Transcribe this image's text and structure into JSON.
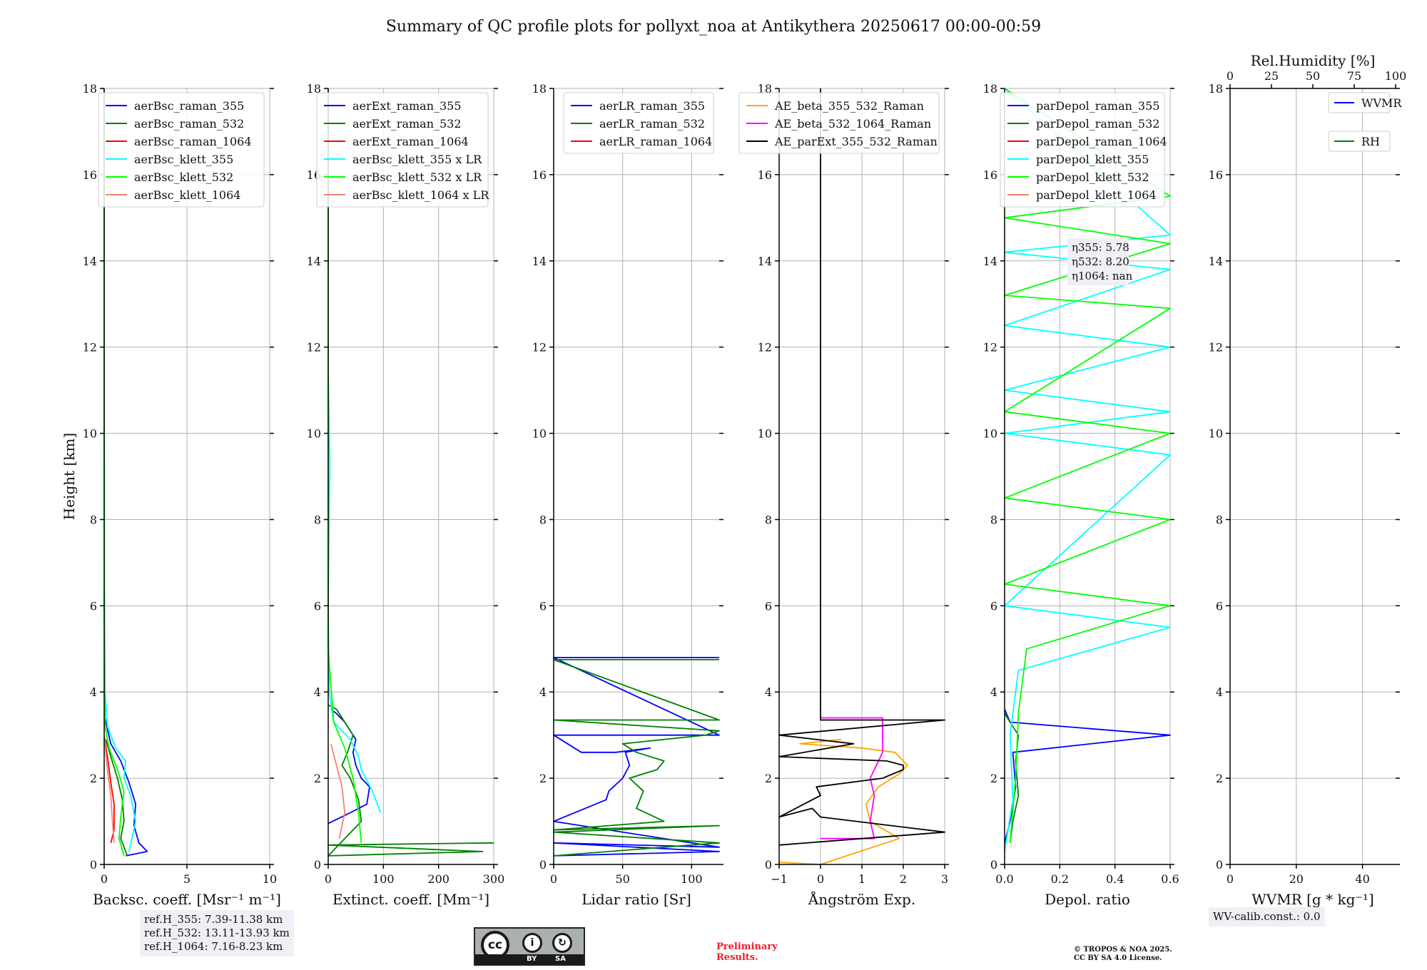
{
  "title": "Summary of QC profile plots for pollyxt_noa at Antikythera 20250617 00:00-00:59",
  "ref_heights": [
    "ref.H_355: 7.39-11.38 km",
    "ref.H_532: 13.11-13.93 km",
    "ref.H_1064: 7.16-8.23 km"
  ],
  "wv_calib": "WV-calib.const.: 0.0",
  "preliminary": [
    "Preliminary",
    "Results."
  ],
  "copyright": [
    "© TROPOS & NOA 2025.",
    "CC BY SA 4.0 License."
  ],
  "license_badge": {
    "cc": "cc",
    "by": "BY",
    "sa": "SA"
  },
  "colors": {
    "blue": "#0000ff",
    "green": "#008000",
    "red": "#ff0000",
    "cyan": "#00ffff",
    "lime": "#00ff00",
    "salmon": "#fa8072",
    "orange": "#ffa500",
    "magenta": "#ff00ff",
    "black": "#000000",
    "grid": "#b0b0b0"
  },
  "chart_data": [
    {
      "type": "line",
      "ylabel": "Height [km]",
      "xlabel": "Backsc. coeff. [Msr⁻¹ m⁻¹]",
      "xlim": [
        0,
        10
      ],
      "ylim": [
        0,
        18
      ],
      "xticks": [
        0,
        5,
        10
      ],
      "yticks": [
        0,
        2,
        4,
        6,
        8,
        10,
        12,
        14,
        16,
        18
      ],
      "grid": true,
      "legend_position": "top-right",
      "series": [
        {
          "name": "aerBsc_raman_355",
          "color": "blue",
          "x": [
            1.3,
            2.6,
            2.1,
            1.8,
            1.9,
            1.5,
            1.0,
            0.4,
            0.1,
            0.0
          ],
          "y": [
            0.2,
            0.3,
            0.5,
            0.9,
            1.4,
            1.9,
            2.4,
            2.8,
            3.3,
            3.5
          ]
        },
        {
          "name": "aerBsc_raman_532",
          "color": "green",
          "x": [
            1.4,
            1.0,
            1.2,
            1.1,
            0.8,
            0.4,
            0.1
          ],
          "y": [
            0.2,
            0.6,
            1.0,
            1.5,
            2.0,
            2.5,
            2.9
          ]
        },
        {
          "name": "aerBsc_raman_1064",
          "color": "red",
          "x": [
            0.4,
            0.6,
            0.6,
            0.4,
            0.2,
            0.0
          ],
          "y": [
            0.5,
            0.8,
            1.4,
            1.9,
            2.5,
            3.0
          ]
        },
        {
          "name": "aerBsc_klett_355",
          "color": "cyan",
          "x": [
            1.5,
            1.9,
            1.6,
            1.2,
            1.3,
            0.7,
            0.2,
            0.05,
            0.0,
            0.02,
            0.0,
            0.0
          ],
          "y": [
            0.3,
            1.0,
            1.6,
            2.0,
            2.4,
            2.7,
            3.2,
            4.0,
            6.0,
            8.0,
            11.5,
            18.0
          ]
        },
        {
          "name": "aerBsc_klett_532",
          "color": "lime",
          "x": [
            1.2,
            0.9,
            1.0,
            1.2,
            0.8,
            0.3,
            0.05,
            0.0,
            0.0
          ],
          "y": [
            0.2,
            0.6,
            1.1,
            1.7,
            2.2,
            2.7,
            3.2,
            8.0,
            18.0
          ]
        },
        {
          "name": "aerBsc_klett_1064",
          "color": "salmon",
          "x": [
            0.6,
            0.5,
            0.4,
            0.2,
            0.0
          ],
          "y": [
            0.5,
            1.0,
            1.6,
            2.2,
            3.0
          ]
        }
      ]
    },
    {
      "type": "line",
      "xlabel": "Extinct. coeff. [Mm⁻¹]",
      "xlim": [
        0,
        300
      ],
      "ylim": [
        0,
        18
      ],
      "xticks": [
        0,
        100,
        200,
        300
      ],
      "yticks": [
        0,
        2,
        4,
        6,
        8,
        10,
        12,
        14,
        16,
        18
      ],
      "grid": true,
      "legend_position": "top-right",
      "series": [
        {
          "name": "aerExt_raman_355",
          "color": "blue",
          "x": [
            0,
            40,
            70,
            75,
            60,
            50,
            45,
            50,
            40,
            30,
            15,
            5
          ],
          "y": [
            0.95,
            1.2,
            1.4,
            1.8,
            2.0,
            2.3,
            2.6,
            2.9,
            3.1,
            3.3,
            3.5,
            3.6
          ]
        },
        {
          "name": "aerExt_raman_532",
          "color": "green",
          "x": [
            300,
            0,
            280,
            0,
            60,
            55,
            40,
            25,
            35,
            45,
            30,
            15,
            0
          ],
          "y": [
            0.5,
            0.45,
            0.3,
            0.2,
            1.0,
            1.5,
            2.0,
            2.3,
            2.6,
            3.0,
            3.3,
            3.6,
            3.7
          ]
        },
        {
          "name": "aerExt_raman_1064",
          "color": "red",
          "x": [],
          "y": []
        },
        {
          "name": "aerBsc_klett_355 x LR",
          "color": "cyan",
          "x": [
            95,
            80,
            60,
            55,
            40,
            10,
            2,
            0,
            3,
            0,
            0
          ],
          "y": [
            1.2,
            1.7,
            2.2,
            2.5,
            2.9,
            3.3,
            4.0,
            6.0,
            9.3,
            11.5,
            18.0
          ]
        },
        {
          "name": "aerBsc_klett_532 x LR",
          "color": "lime",
          "x": [
            60,
            55,
            45,
            30,
            10,
            0,
            0
          ],
          "y": [
            0.5,
            1.2,
            2.0,
            2.7,
            3.3,
            5.0,
            18.0
          ]
        },
        {
          "name": "aerBsc_klett_1064 x LR",
          "color": "salmon",
          "x": [
            20,
            30,
            25,
            15,
            5
          ],
          "y": [
            0.6,
            1.2,
            1.8,
            2.3,
            2.8
          ]
        }
      ]
    },
    {
      "type": "line",
      "xlabel": "Lidar ratio [Sr]",
      "xlim": [
        0,
        120
      ],
      "ylim": [
        0,
        18
      ],
      "xticks": [
        0,
        50,
        100
      ],
      "yticks": [
        0,
        2,
        4,
        6,
        8,
        10,
        12,
        14,
        16,
        18
      ],
      "grid": true,
      "legend_position": "top-right",
      "series": [
        {
          "name": "aerLR_raman_355",
          "color": "blue",
          "x": [
            0,
            120,
            0,
            120,
            0,
            38,
            40,
            50,
            55,
            52,
            70,
            45,
            20,
            0,
            120,
            0,
            120
          ],
          "y": [
            0.2,
            0.3,
            0.5,
            0.4,
            1.0,
            1.5,
            1.7,
            2.0,
            2.3,
            2.6,
            2.7,
            2.6,
            2.6,
            3.0,
            3.0,
            4.8,
            4.8
          ]
        },
        {
          "name": "aerLR_raman_532",
          "color": "green",
          "x": [
            0,
            120,
            0,
            120,
            0,
            80,
            60,
            65,
            55,
            75,
            80,
            60,
            50,
            110,
            120,
            0,
            120,
            0,
            120
          ],
          "y": [
            0.2,
            0.5,
            0.75,
            0.9,
            0.8,
            1.0,
            1.3,
            1.7,
            2.0,
            2.2,
            2.4,
            2.6,
            2.8,
            3.0,
            3.1,
            3.35,
            3.35,
            4.75,
            4.75
          ]
        },
        {
          "name": "aerLR_raman_1064",
          "color": "red",
          "x": [],
          "y": []
        }
      ]
    },
    {
      "type": "line",
      "xlabel": "Ångström Exp.",
      "xlim": [
        -1,
        3
      ],
      "ylim": [
        0,
        18
      ],
      "xticks": [
        -1,
        0,
        1,
        2,
        3
      ],
      "yticks": [
        0,
        2,
        4,
        6,
        8,
        10,
        12,
        14,
        16,
        18
      ],
      "grid": true,
      "legend_position": "top-right",
      "series": [
        {
          "name": "AE_beta_355_532_Raman",
          "color": "orange",
          "x": [
            -1.0,
            0.0,
            1.9,
            1.2,
            1.1,
            1.4,
            1.9,
            2.1,
            1.8,
            1.0,
            -0.5,
            0.5
          ],
          "y": [
            0.05,
            0.0,
            0.6,
            1.0,
            1.4,
            1.8,
            2.1,
            2.3,
            2.6,
            2.7,
            2.8,
            2.9
          ]
        },
        {
          "name": "AE_beta_532_1064_Raman",
          "color": "magenta",
          "x": [
            0.0,
            1.3,
            1.2,
            1.3,
            1.2,
            1.5,
            1.5,
            0.0
          ],
          "y": [
            0.6,
            0.6,
            1.0,
            1.6,
            2.0,
            2.6,
            3.4,
            3.4
          ]
        },
        {
          "name": "AE_parExt_355_532_Raman",
          "color": "black",
          "x": [
            -1,
            3,
            0.0,
            -0.2,
            -1.0,
            0.0,
            -0.1,
            1.5,
            2.0,
            2.0,
            1.6,
            -1.0,
            0.8,
            -1.0,
            3,
            0.0,
            0.0
          ],
          "y": [
            0.45,
            0.75,
            1.1,
            1.3,
            1.1,
            1.6,
            1.8,
            2.0,
            2.2,
            2.3,
            2.4,
            2.5,
            2.8,
            3.0,
            3.35,
            3.35,
            18.0
          ]
        }
      ]
    },
    {
      "type": "line",
      "xlabel": "Depol. ratio",
      "xlim": [
        0,
        0.6
      ],
      "ylim": [
        0,
        18
      ],
      "xticks": [
        0.0,
        0.2,
        0.4,
        0.6
      ],
      "yticks": [
        0,
        2,
        4,
        6,
        8,
        10,
        12,
        14,
        16,
        18
      ],
      "grid": true,
      "legend_position": "top-right",
      "series": [
        {
          "name": "parDepol_raman_355",
          "color": "blue",
          "x": [
            0.0,
            0.02,
            0.04,
            0.03,
            0.6,
            0.02,
            0.0
          ],
          "y": [
            0.5,
            1.0,
            1.8,
            2.6,
            3.0,
            3.3,
            3.6
          ]
        },
        {
          "name": "parDepol_raman_532",
          "color": "green",
          "x": [
            0.02,
            0.03,
            0.05,
            0.04,
            0.05,
            0.0
          ],
          "y": [
            0.5,
            1.0,
            1.6,
            2.4,
            3.0,
            3.5
          ]
        },
        {
          "name": "parDepol_raman_1064",
          "color": "red",
          "x": [],
          "y": []
        },
        {
          "name": "parDepol_klett_355",
          "color": "cyan",
          "x": [
            0.0,
            0.03,
            0.02,
            0.05,
            0.6,
            0.0,
            0.6,
            0.0,
            0.6,
            0.0,
            0.6,
            0.0,
            0.6,
            0.0,
            0.6,
            0.0
          ],
          "y": [
            0.3,
            1.5,
            3.0,
            4.5,
            5.5,
            6.0,
            9.5,
            10.0,
            10.5,
            11.0,
            12.0,
            12.5,
            13.8,
            14.2,
            14.6,
            18.0
          ]
        },
        {
          "name": "parDepol_klett_532",
          "color": "lime",
          "x": [
            0.02,
            0.04,
            0.05,
            0.08,
            0.6,
            0.0,
            0.6,
            0.0,
            0.6,
            0.0,
            0.6,
            0.0,
            0.6,
            0.0,
            0.6,
            0.0
          ],
          "y": [
            0.5,
            2.0,
            3.5,
            5.0,
            6.0,
            6.5,
            8.0,
            8.5,
            10.0,
            10.5,
            12.9,
            13.2,
            14.4,
            15.0,
            15.5,
            18.0
          ]
        },
        {
          "name": "parDepol_klett_1064",
          "color": "salmon",
          "x": [],
          "y": []
        }
      ],
      "annotation": [
        "η355: 5.78",
        "η532: 8.20",
        "η1064: nan"
      ]
    },
    {
      "type": "line",
      "xlabel": "WVMR [g * kg⁻¹]",
      "xlabel_top": "Rel.Humidity [%]",
      "xlim": [
        0,
        50
      ],
      "xlim_top": [
        0,
        100
      ],
      "ylim": [
        0,
        18
      ],
      "xticks": [
        0,
        20,
        40
      ],
      "xticks_top": [
        0,
        25,
        50,
        75,
        100
      ],
      "yticks": [
        0,
        2,
        4,
        6,
        8,
        10,
        12,
        14,
        16,
        18
      ],
      "grid": true,
      "legend_position": "top-right",
      "series": [
        {
          "name": "WVMR",
          "color": "blue",
          "x": [],
          "y": []
        },
        {
          "name": "RH",
          "color": "green",
          "x": [],
          "y": []
        }
      ]
    }
  ]
}
